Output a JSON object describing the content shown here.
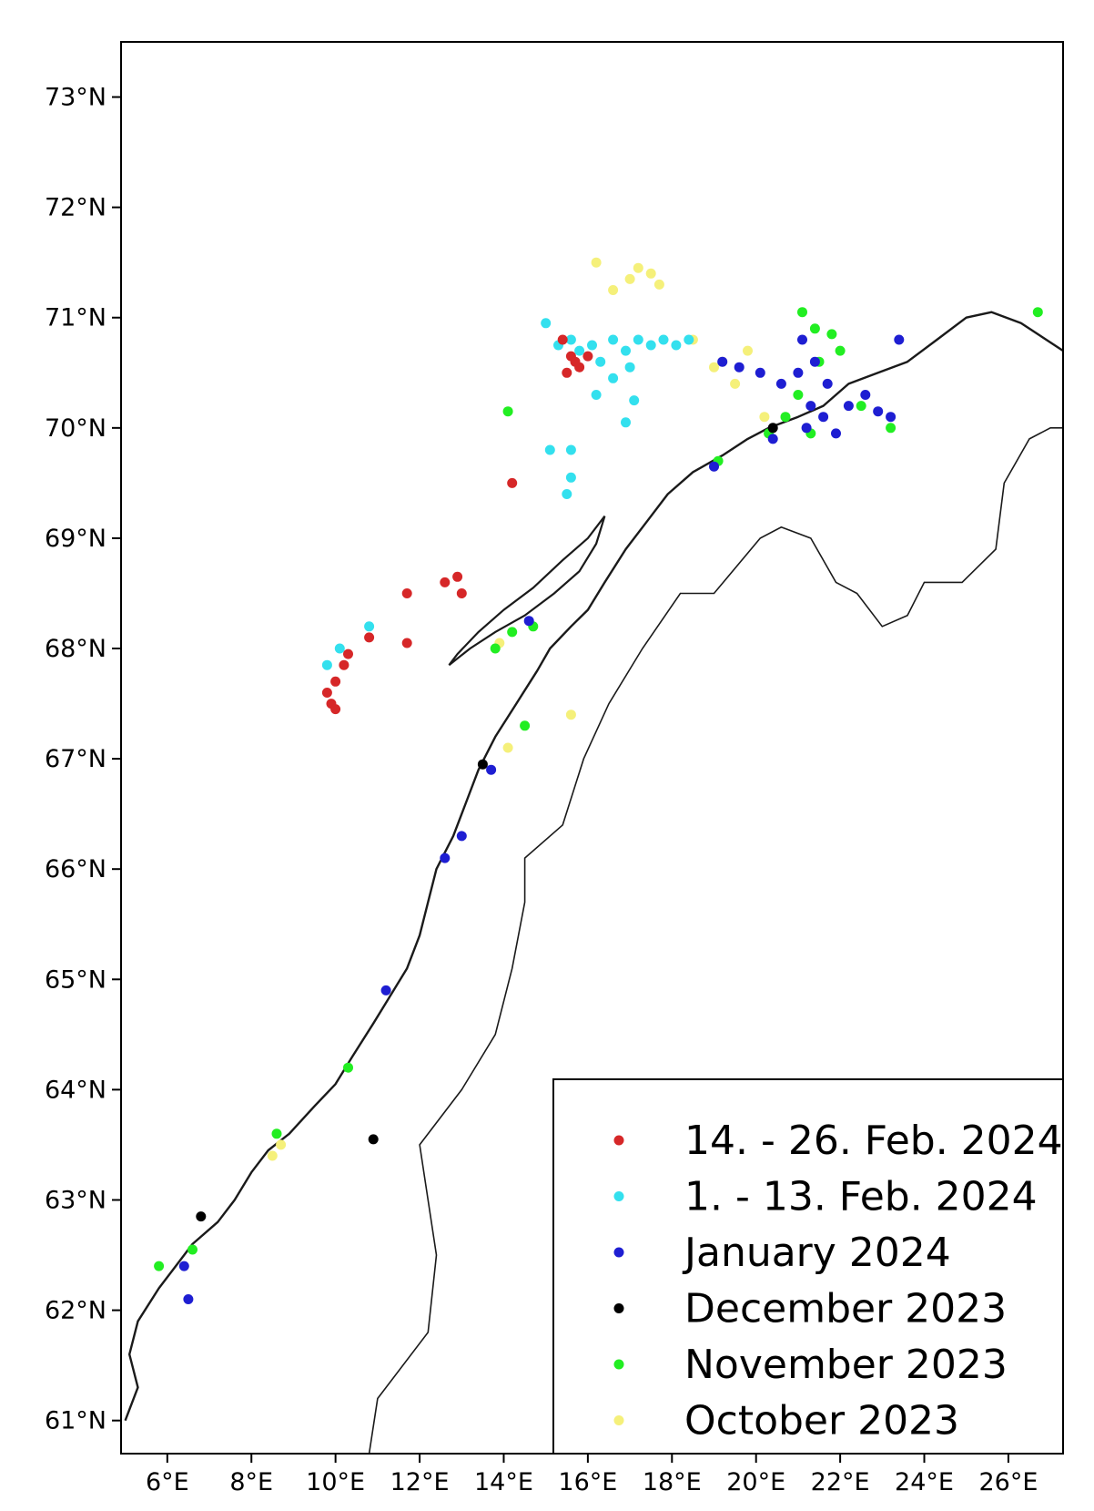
{
  "map": {
    "projection": "lat-lon",
    "lon_range": [
      4.9,
      27.3
    ],
    "lat_range": [
      60.7,
      73.5
    ],
    "lat_ticks": [
      {
        "value": 61,
        "label": "61°N"
      },
      {
        "value": 62,
        "label": "62°N"
      },
      {
        "value": 63,
        "label": "63°N"
      },
      {
        "value": 64,
        "label": "64°N"
      },
      {
        "value": 65,
        "label": "65°N"
      },
      {
        "value": 66,
        "label": "66°N"
      },
      {
        "value": 67,
        "label": "67°N"
      },
      {
        "value": 68,
        "label": "68°N"
      },
      {
        "value": 69,
        "label": "69°N"
      },
      {
        "value": 70,
        "label": "70°N"
      },
      {
        "value": 71,
        "label": "71°N"
      },
      {
        "value": 72,
        "label": "72°N"
      },
      {
        "value": 73,
        "label": "73°N"
      }
    ],
    "lon_ticks": [
      {
        "value": 6,
        "label": "6°E"
      },
      {
        "value": 8,
        "label": "8°E"
      },
      {
        "value": 10,
        "label": "10°E"
      },
      {
        "value": 12,
        "label": "12°E"
      },
      {
        "value": 14,
        "label": "14°E"
      },
      {
        "value": 16,
        "label": "16°E"
      },
      {
        "value": 18,
        "label": "18°E"
      },
      {
        "value": 20,
        "label": "20°E"
      },
      {
        "value": 22,
        "label": "22°E"
      },
      {
        "value": 24,
        "label": "24°E"
      },
      {
        "value": 26,
        "label": "26°E"
      }
    ],
    "coastline_color": "#1a1a1a",
    "legend_position": "bottom-right",
    "legend": [
      {
        "key": "feb2",
        "label": "14. - 26. Feb. 2024",
        "color": "#d62728"
      },
      {
        "key": "feb1",
        "label": "1. - 13. Feb. 2024",
        "color": "#33e0ee"
      },
      {
        "key": "jan",
        "label": "January 2024",
        "color": "#1e1ed2"
      },
      {
        "key": "dec",
        "label": "December 2023",
        "color": "#000000"
      },
      {
        "key": "nov",
        "label": "November 2023",
        "color": "#22ee22"
      },
      {
        "key": "oct",
        "label": "October 2023",
        "color": "#f5f07a"
      }
    ],
    "coastline_lonlat": [
      [
        5.0,
        61.0
      ],
      [
        5.3,
        61.3
      ],
      [
        5.1,
        61.6
      ],
      [
        5.3,
        61.9
      ],
      [
        5.8,
        62.2
      ],
      [
        6.2,
        62.4
      ],
      [
        6.6,
        62.6
      ],
      [
        7.2,
        62.8
      ],
      [
        7.6,
        63.0
      ],
      [
        8.0,
        63.25
      ],
      [
        8.4,
        63.45
      ],
      [
        8.9,
        63.6
      ],
      [
        9.5,
        63.85
      ],
      [
        10.0,
        64.05
      ],
      [
        10.4,
        64.3
      ],
      [
        10.9,
        64.6
      ],
      [
        11.3,
        64.85
      ],
      [
        11.7,
        65.1
      ],
      [
        12.0,
        65.4
      ],
      [
        12.2,
        65.7
      ],
      [
        12.4,
        66.0
      ],
      [
        12.8,
        66.3
      ],
      [
        13.1,
        66.6
      ],
      [
        13.4,
        66.9
      ],
      [
        13.8,
        67.2
      ],
      [
        14.3,
        67.5
      ],
      [
        14.8,
        67.8
      ],
      [
        15.1,
        68.0
      ],
      [
        15.6,
        68.2
      ],
      [
        16.0,
        68.35
      ],
      [
        16.4,
        68.6
      ],
      [
        16.9,
        68.9
      ],
      [
        17.4,
        69.15
      ],
      [
        17.9,
        69.4
      ],
      [
        18.5,
        69.6
      ],
      [
        19.2,
        69.75
      ],
      [
        19.8,
        69.9
      ],
      [
        20.3,
        70.0
      ],
      [
        21.0,
        70.1
      ],
      [
        21.6,
        70.2
      ],
      [
        22.2,
        70.4
      ],
      [
        22.9,
        70.5
      ],
      [
        23.6,
        70.6
      ],
      [
        24.3,
        70.8
      ],
      [
        25.0,
        71.0
      ],
      [
        25.6,
        71.05
      ],
      [
        26.3,
        70.95
      ],
      [
        27.3,
        70.7
      ]
    ],
    "lofoten_lonlat": [
      [
        12.7,
        67.85
      ],
      [
        13.2,
        68.0
      ],
      [
        13.8,
        68.15
      ],
      [
        14.5,
        68.3
      ],
      [
        15.2,
        68.5
      ],
      [
        15.8,
        68.7
      ],
      [
        16.2,
        68.95
      ],
      [
        16.4,
        69.2
      ],
      [
        16.0,
        69.0
      ],
      [
        15.4,
        68.8
      ],
      [
        14.7,
        68.55
      ],
      [
        14.0,
        68.35
      ],
      [
        13.4,
        68.15
      ],
      [
        12.9,
        67.95
      ]
    ],
    "border_lonlat": [
      [
        10.8,
        60.7
      ],
      [
        11.0,
        61.2
      ],
      [
        12.2,
        61.8
      ],
      [
        12.4,
        62.5
      ],
      [
        12.2,
        63.0
      ],
      [
        12.0,
        63.5
      ],
      [
        13.0,
        64.0
      ],
      [
        13.8,
        64.5
      ],
      [
        14.2,
        65.1
      ],
      [
        14.5,
        65.7
      ],
      [
        14.5,
        66.1
      ],
      [
        15.4,
        66.4
      ],
      [
        15.9,
        67.0
      ],
      [
        16.5,
        67.5
      ],
      [
        17.3,
        68.0
      ],
      [
        18.2,
        68.5
      ],
      [
        19.0,
        68.5
      ],
      [
        20.1,
        69.0
      ],
      [
        20.6,
        69.1
      ],
      [
        21.3,
        69.0
      ],
      [
        21.9,
        68.6
      ],
      [
        22.4,
        68.5
      ],
      [
        23.0,
        68.2
      ],
      [
        23.6,
        68.3
      ],
      [
        24.0,
        68.6
      ],
      [
        24.9,
        68.6
      ],
      [
        25.7,
        68.9
      ],
      [
        25.9,
        69.5
      ],
      [
        26.5,
        69.9
      ],
      [
        27.0,
        70.0
      ],
      [
        27.3,
        70.0
      ]
    ],
    "points": {
      "feb2": [
        [
          15.4,
          70.8
        ],
        [
          15.6,
          70.65
        ],
        [
          15.8,
          70.55
        ],
        [
          15.5,
          70.5
        ],
        [
          16.0,
          70.65
        ],
        [
          15.7,
          70.6
        ],
        [
          9.8,
          67.6
        ],
        [
          9.9,
          67.5
        ],
        [
          10.0,
          67.7
        ],
        [
          10.2,
          67.85
        ],
        [
          10.3,
          67.95
        ],
        [
          10.8,
          68.1
        ],
        [
          11.7,
          68.5
        ],
        [
          12.6,
          68.6
        ],
        [
          12.9,
          68.65
        ],
        [
          13.0,
          68.5
        ],
        [
          11.7,
          68.05
        ],
        [
          14.2,
          69.5
        ],
        [
          10.0,
          67.45
        ]
      ],
      "feb1": [
        [
          15.0,
          70.95
        ],
        [
          15.3,
          70.75
        ],
        [
          15.6,
          70.8
        ],
        [
          15.8,
          70.7
        ],
        [
          16.1,
          70.75
        ],
        [
          16.3,
          70.6
        ],
        [
          16.6,
          70.8
        ],
        [
          16.9,
          70.7
        ],
        [
          17.2,
          70.8
        ],
        [
          17.5,
          70.75
        ],
        [
          17.8,
          70.8
        ],
        [
          18.1,
          70.75
        ],
        [
          18.4,
          70.8
        ],
        [
          16.2,
          70.3
        ],
        [
          16.6,
          70.45
        ],
        [
          17.0,
          70.55
        ],
        [
          17.1,
          70.25
        ],
        [
          16.9,
          70.05
        ],
        [
          15.1,
          69.8
        ],
        [
          15.6,
          69.8
        ],
        [
          15.6,
          69.55
        ],
        [
          15.5,
          69.4
        ],
        [
          10.1,
          68.0
        ],
        [
          10.8,
          68.2
        ],
        [
          9.8,
          67.85
        ]
      ],
      "jan": [
        [
          19.2,
          70.6
        ],
        [
          19.6,
          70.55
        ],
        [
          20.1,
          70.5
        ],
        [
          20.6,
          70.4
        ],
        [
          21.0,
          70.5
        ],
        [
          21.3,
          70.2
        ],
        [
          21.2,
          70.0
        ],
        [
          21.6,
          70.1
        ],
        [
          21.9,
          69.95
        ],
        [
          22.2,
          70.2
        ],
        [
          22.6,
          70.3
        ],
        [
          22.9,
          70.15
        ],
        [
          23.2,
          70.1
        ],
        [
          21.4,
          70.6
        ],
        [
          21.7,
          70.4
        ],
        [
          21.1,
          70.8
        ],
        [
          20.4,
          69.9
        ],
        [
          23.4,
          70.8
        ],
        [
          19.0,
          69.65
        ],
        [
          14.6,
          68.25
        ],
        [
          13.7,
          66.9
        ],
        [
          13.0,
          66.3
        ],
        [
          12.6,
          66.1
        ],
        [
          11.2,
          64.9
        ],
        [
          6.4,
          62.4
        ],
        [
          6.5,
          62.1
        ]
      ],
      "dec": [
        [
          20.4,
          70.0
        ],
        [
          13.5,
          66.95
        ],
        [
          10.9,
          63.55
        ],
        [
          6.8,
          62.85
        ]
      ],
      "nov": [
        [
          21.1,
          71.05
        ],
        [
          21.4,
          70.9
        ],
        [
          21.8,
          70.85
        ],
        [
          22.0,
          70.7
        ],
        [
          21.5,
          70.6
        ],
        [
          21.0,
          70.3
        ],
        [
          20.7,
          70.1
        ],
        [
          21.3,
          69.95
        ],
        [
          20.3,
          69.95
        ],
        [
          22.5,
          70.2
        ],
        [
          23.2,
          70.0
        ],
        [
          26.7,
          71.05
        ],
        [
          14.1,
          70.15
        ],
        [
          19.1,
          69.7
        ],
        [
          14.2,
          68.15
        ],
        [
          14.7,
          68.2
        ],
        [
          13.8,
          68.0
        ],
        [
          14.5,
          67.3
        ],
        [
          8.6,
          63.6
        ],
        [
          5.8,
          62.4
        ],
        [
          6.6,
          62.55
        ],
        [
          10.3,
          64.2
        ]
      ],
      "oct": [
        [
          16.2,
          71.5
        ],
        [
          17.2,
          71.45
        ],
        [
          17.5,
          71.4
        ],
        [
          17.7,
          71.3
        ],
        [
          16.6,
          71.25
        ],
        [
          17.0,
          71.35
        ],
        [
          19.2,
          70.6
        ],
        [
          19.5,
          70.4
        ],
        [
          19.0,
          70.55
        ],
        [
          19.8,
          70.7
        ],
        [
          18.5,
          70.8
        ],
        [
          20.2,
          70.1
        ],
        [
          13.9,
          68.05
        ],
        [
          15.6,
          67.4
        ],
        [
          14.1,
          67.1
        ],
        [
          8.5,
          63.4
        ],
        [
          8.7,
          63.5
        ]
      ]
    }
  }
}
